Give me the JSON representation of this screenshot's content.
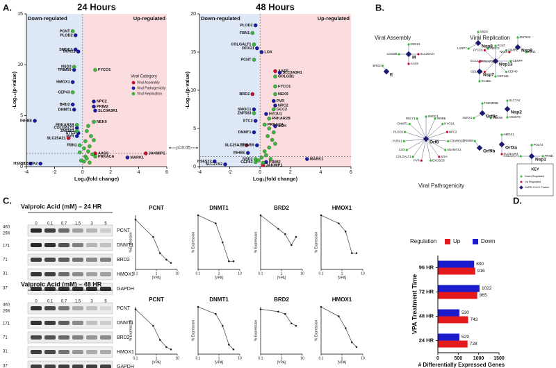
{
  "panel_labels": [
    "A.",
    "B.",
    "C.",
    "D."
  ],
  "chart_data": [
    {
      "type": "scatter",
      "title": "24 Hours",
      "xlabel": "Log₂(fold change)",
      "ylabel": "-Log₁₀(p-value)",
      "regions": [
        "Down-regulated",
        "Up-regulated"
      ],
      "region_colors": [
        "#dde7f6",
        "#fbdde0"
      ],
      "threshold": 1.3,
      "threshold_label": "p=0.05",
      "legend_title": "Viral Category",
      "xlim": [
        -4,
        6
      ],
      "xticks": [
        -4,
        -2,
        0,
        2,
        4,
        6
      ],
      "ylim": [
        0,
        15
      ],
      "yticks": [
        0,
        5,
        10,
        15
      ],
      "series": [
        {
          "name": "Viral Assembly",
          "color": "#c8102e",
          "x": [
            -1.0,
            4.5,
            0.9
          ],
          "y": [
            2.8,
            1.3,
            1.3
          ],
          "labels": [
            "SLC25A21",
            "JAKMIP1",
            "AASS"
          ]
        },
        {
          "name": "Viral Pathogenicity",
          "color": "#1a1aa6",
          "x": [
            -0.5,
            -0.5,
            -0.3,
            -0.6,
            -0.7,
            -0.7,
            0.8,
            0.8,
            0.9,
            -0.6,
            -3.4,
            -0.3,
            -0.4,
            -0.4,
            -3.7,
            -3.0,
            3.2
          ],
          "y": [
            12.9,
            11.5,
            11.3,
            9.5,
            8.3,
            6.1,
            6.4,
            5.9,
            5.5,
            5.6,
            4.5,
            3.3,
            3.0,
            3.8,
            0.3,
            0.3,
            0.9
          ],
          "labels": [
            "PLOD2",
            "SMOC1",
            "DDX21",
            "TRIM59",
            "HMOX1",
            "BRD2",
            "NPC2",
            "PRIM2",
            "SLC9A3R1",
            "DNMT1",
            "INHBE",
            "STC2",
            "PVR",
            "COLGALT1",
            "HS6ST2",
            "SLC27A2",
            "MARK1"
          ]
        },
        {
          "name": "Viral Replication",
          "color": "#3cb83c",
          "x": [
            -0.7,
            -0.6,
            0.9,
            -0.7,
            0.8,
            -0.4,
            -0.4,
            -0.2,
            0.9,
            0.1,
            0.2,
            0.3,
            0.4,
            0.5,
            0.2,
            0.6,
            0.3,
            0.1,
            0.7,
            0.5,
            -0.1,
            -0.2,
            0.8,
            0.4
          ],
          "y": [
            13.3,
            9.8,
            9.5,
            7.3,
            4.4,
            4.1,
            3.5,
            2.1,
            1.0,
            0.5,
            1.0,
            0.8,
            1.5,
            2.0,
            2.5,
            3.0,
            3.5,
            1.8,
            1.2,
            0.4,
            0.6,
            1.4,
            2.6,
            4.0
          ],
          "labels": [
            "PCNT",
            "NSD2",
            "FYCO1",
            "CEP43",
            "NEK9",
            "PRKAR2B",
            "ZNF503",
            "FBN1",
            "PRKACA",
            null,
            null,
            null,
            null,
            null,
            null,
            null,
            null,
            null,
            null,
            null,
            null,
            null,
            null,
            null
          ]
        }
      ]
    },
    {
      "type": "scatter",
      "title": "48 Hours",
      "xlabel": "Log₂(fold change)",
      "ylabel": "-Log₁₀(p-value)",
      "regions": [
        "Down-regulated",
        "Up-regulated"
      ],
      "region_colors": [
        "#dde7f6",
        "#fbdde0"
      ],
      "threshold": 1.3,
      "xlim": [
        -4,
        6
      ],
      "xticks": [
        -4,
        -2,
        0,
        2,
        4,
        6
      ],
      "ylim": [
        0,
        20
      ],
      "yticks": [
        0,
        5,
        10,
        15,
        20
      ],
      "series": [
        {
          "color": "#c8102e",
          "x": [
            1.0,
            -0.5,
            -0.9,
            0.2
          ],
          "y": [
            12.5,
            9.5,
            2.8,
            0.2
          ],
          "labels": [
            "AASS",
            "BRD2",
            "SLC25A21",
            "JAKMIP1"
          ]
        },
        {
          "color": "#1a1aa6",
          "x": [
            -0.3,
            -0.2,
            0.1,
            1.3,
            1.0,
            0.9,
            -0.4,
            0.4,
            -0.3,
            -0.4,
            -0.2,
            -0.8,
            0.4,
            -3.0,
            -2.3,
            3.1,
            1.0
          ],
          "y": [
            18.5,
            15.5,
            15.0,
            12.3,
            8.0,
            8.6,
            7.5,
            6.9,
            6.0,
            4.5,
            2.8,
            1.8,
            0.6,
            0.7,
            0.3,
            1.0,
            5.3
          ],
          "labels": [
            "PLOD2",
            "DDX21",
            "LOX",
            "SLC9A3R1",
            "NPC2",
            "PVR",
            "SMOC1",
            "HYOU1",
            "STC2",
            "DNMT1",
            "TRIM59",
            "INHBE",
            "PRIM2",
            "HS6ST2",
            "SLC27A2",
            "MARK1",
            "SGH"
          ]
        },
        {
          "color": "#3cb83c",
          "x": [
            -0.5,
            -0.4,
            -0.4,
            1.0,
            1.0,
            1.0,
            0.9,
            -0.4,
            0.6,
            0.3,
            -0.3,
            -0.3,
            0.2,
            0.4,
            0.6,
            0.8,
            0.3,
            0.5,
            0.7,
            1.0,
            0.9,
            -0.1,
            0.1,
            0.6
          ],
          "y": [
            17.5,
            16.0,
            14.0,
            11.8,
            10.5,
            9.5,
            7.5,
            7.0,
            6.3,
            5.5,
            1.0,
            0.6,
            0.5,
            1.5,
            2.5,
            3.5,
            2.0,
            4.0,
            1.0,
            3.0,
            4.5,
            0.8,
            1.2,
            5.0
          ],
          "labels": [
            "FBN1",
            "COLGALT1",
            "PCNT",
            "GOLGB1",
            "FYCO1",
            "NEK9",
            "GCC2",
            "ZNF503",
            "PRKAR2B",
            "PRKACA",
            "NSD2",
            "CEP43",
            null,
            null,
            null,
            null,
            null,
            null,
            null,
            null,
            null,
            null,
            null,
            null
          ]
        }
      ]
    },
    {
      "type": "line",
      "title": "PCNT",
      "ylabel": "%Expression",
      "xlabel": "[VPA]",
      "xscale": "log",
      "color": "#555555",
      "x": [
        0.1,
        0.7,
        1.5,
        3,
        5
      ],
      "values": [
        92,
        60,
        30,
        18,
        12
      ],
      "xlim": [
        0.1,
        10
      ],
      "xticks": [
        0.1,
        1,
        10
      ],
      "ylim": [
        0,
        100
      ]
    },
    {
      "type": "line",
      "title": "DNMT1",
      "ylabel": "% Expression",
      "xlabel": "[VPA]",
      "xscale": "log",
      "color": "#555555",
      "x": [
        0.1,
        0.7,
        1.5,
        3,
        5
      ],
      "values": [
        100,
        85,
        50,
        15,
        15
      ],
      "xlim": [
        0.1,
        10
      ],
      "xticks": [
        0.1,
        1,
        10
      ],
      "ylim": [
        0,
        100
      ]
    },
    {
      "type": "line",
      "title": "BRD2",
      "ylabel": "% Expression",
      "xlabel": "[VPA]",
      "xscale": "log",
      "color": "#555555",
      "x": [
        0.1,
        0.7,
        1.5,
        3,
        5
      ],
      "values": [
        100,
        75,
        65,
        45,
        60
      ],
      "xlim": [
        0.1,
        10
      ],
      "xticks": [
        0.1,
        1,
        10
      ],
      "ylim": [
        0,
        100
      ]
    },
    {
      "type": "line",
      "title": "HMOX1",
      "ylabel": "% Expression",
      "xlabel": "[VPA]",
      "xscale": "log",
      "color": "#555555",
      "x": [
        0.1,
        0.7,
        1.5,
        3,
        5
      ],
      "values": [
        100,
        85,
        70,
        30,
        30
      ],
      "xlim": [
        0.1,
        10
      ],
      "xticks": [
        0.1,
        1,
        10
      ],
      "ylim": [
        0,
        100
      ]
    },
    {
      "type": "line",
      "title": "PCNT",
      "ylabel": "% Expression",
      "xlabel": "[VPA]",
      "xscale": "log",
      "color": "#555555",
      "x": [
        0.1,
        0.7,
        1.5,
        3,
        5
      ],
      "values": [
        95,
        60,
        30,
        15,
        10
      ],
      "xlim": [
        0.1,
        10
      ],
      "xticks": [
        0.1,
        1,
        10
      ],
      "ylim": [
        0,
        100
      ]
    },
    {
      "type": "line",
      "title": "DNMT1",
      "ylabel": "% Expression",
      "xlabel": "[VPA]",
      "xscale": "log",
      "color": "#555555",
      "x": [
        0.1,
        0.7,
        1.5,
        3,
        5
      ],
      "values": [
        100,
        85,
        60,
        20,
        10
      ],
      "xlim": [
        0.1,
        10
      ],
      "xticks": [
        0.1,
        1,
        10
      ],
      "ylim": [
        0,
        100
      ]
    },
    {
      "type": "line",
      "title": "BRD2",
      "ylabel": "% Expression",
      "xlabel": "[VPA]",
      "xscale": "log",
      "color": "#555555",
      "x": [
        0.1,
        0.7,
        1.5,
        3,
        5
      ],
      "values": [
        95,
        90,
        85,
        65,
        60
      ],
      "xlim": [
        0.1,
        10
      ],
      "xticks": [
        0.1,
        1,
        10
      ],
      "ylim": [
        0,
        100
      ]
    },
    {
      "type": "line",
      "title": "HMOX1",
      "ylabel": "% Expression",
      "xlabel": "[VPA]",
      "xscale": "log",
      "color": "#555555",
      "x": [
        0.1,
        0.7,
        1.5,
        3,
        5
      ],
      "values": [
        100,
        80,
        55,
        25,
        15
      ],
      "xlim": [
        0.1,
        10
      ],
      "xticks": [
        0.1,
        1,
        10
      ],
      "ylim": [
        0,
        100
      ]
    },
    {
      "type": "barh",
      "ylabel": "VPA Treatment Time",
      "xlabel": "# Differentially  Expressed Genes",
      "legend_title": "Regulation",
      "categories": [
        "24 HR",
        "48 HR",
        "72 HR",
        "96 HR"
      ],
      "series": [
        {
          "name": "Up",
          "color": "#e4191c",
          "values": [
            728,
            743,
            965,
            916
          ]
        },
        {
          "name": "Down",
          "color": "#1c1ccf",
          "values": [
            529,
            530,
            1022,
            890
          ]
        }
      ],
      "xlim": [
        0,
        1500
      ],
      "xticks": [
        0,
        500,
        1000,
        1500
      ]
    }
  ],
  "network": {
    "groups": [
      "Viral Assembly",
      "Viral Replication",
      "Viral Pathogenicity"
    ],
    "hubs": [
      {
        "label": "E",
        "genes": [
          {
            "name": "BRD2"
          }
        ]
      },
      {
        "label": "M",
        "genes": [
          {
            "name": "DDX21"
          },
          {
            "name": "SLC25A21",
            "up": true
          },
          {
            "name": "AASS",
            "up": true
          },
          {
            "name": "COG8B"
          }
        ]
      },
      {
        "label": "Nsp8",
        "genes": [
          {
            "name": "NSD2"
          },
          {
            "name": "RBPC2"
          },
          {
            "name": "LARP7"
          }
        ]
      },
      {
        "label": "Nsp13",
        "genes": [
          {
            "name": "PCNT"
          },
          {
            "name": "CNTRL"
          },
          {
            "name": "CENPF"
          },
          {
            "name": "CEP43"
          },
          {
            "name": "CEP135"
          },
          {
            "name": "GOLGB1",
            "up": true
          },
          {
            "name": "GCC2",
            "up": true
          },
          {
            "name": "FYCO1",
            "up": true
          }
        ]
      },
      {
        "label": "Nsp7",
        "genes": [
          {
            "name": "PRKAR2B",
            "up": true
          },
          {
            "name": "SC4B1"
          }
        ]
      },
      {
        "label": "Nsp9",
        "genes": [
          {
            "name": "ZNF503"
          },
          {
            "name": "FBN1"
          },
          {
            "name": "NEK9",
            "up": true
          }
        ]
      },
      {
        "label": "Orf8",
        "genes": [
          {
            "name": "SMOC1"
          },
          {
            "name": "INHBE"
          },
          {
            "name": "HYOU1"
          },
          {
            "name": "NPC2",
            "up": true
          },
          {
            "name": "FOXRED2"
          },
          {
            "name": "ADAMTS1"
          },
          {
            "name": "SGH",
            "up": true
          },
          {
            "name": "EXOSC8"
          },
          {
            "name": "PVR",
            "up": true
          },
          {
            "name": "COLGALT1"
          },
          {
            "name": "LOX"
          },
          {
            "name": "PUSL1"
          },
          {
            "name": "PLOD2"
          },
          {
            "name": "DNMT1"
          },
          {
            "name": "NGLY1"
          }
        ]
      },
      {
        "label": "Orf9c",
        "genes": [
          {
            "name": "TMEM39B"
          },
          {
            "name": "UBXN8"
          },
          {
            "name": "NLRX1"
          }
        ]
      },
      {
        "label": "Nsp2",
        "genes": [
          {
            "name": "SLC7A2"
          },
          {
            "name": "HS6ST2"
          }
        ]
      },
      {
        "label": "Orf9b",
        "genes": [
          {
            "name": "TRIM59"
          }
        ]
      },
      {
        "label": "Orf3a",
        "genes": [
          {
            "name": "HMOX1"
          },
          {
            "name": "SLC9A3R1",
            "up": true
          }
        ]
      },
      {
        "label": "Nsp1",
        "genes": [
          {
            "name": "POLA2"
          },
          {
            "name": "PRIM1"
          },
          {
            "name": "PRIM2",
            "up": true
          },
          {
            "name": "COLGALT1"
          }
        ]
      }
    ],
    "key": {
      "title": "KEY",
      "items": [
        "Down Regulated",
        "Up Regulated",
        "SARS-CoV-2 Protein"
      ],
      "colors": [
        "#3cb83c",
        "#c8102e",
        "#1a1a6e"
      ]
    }
  },
  "blots": [
    {
      "title": "Valproic Acid (mM) – 24 HR",
      "lanes": [
        0,
        0.1,
        0.7,
        1.5,
        3,
        5
      ],
      "proteins": [
        "PCNT",
        "DNMT1",
        "BRD2",
        "HMOX1",
        "GAPDH"
      ],
      "markers": [
        460,
        268,
        171,
        71,
        31,
        37
      ]
    },
    {
      "title": "Valproic Acid (mM) – 48 HR",
      "lanes": [
        0,
        0.1,
        0.7,
        1.5,
        3,
        5
      ],
      "proteins": [
        "PCNT",
        "DNMT1",
        "BRD2",
        "HMOX1",
        "GAPDH"
      ],
      "markers": [
        460,
        268,
        171,
        71,
        31,
        37
      ]
    }
  ]
}
